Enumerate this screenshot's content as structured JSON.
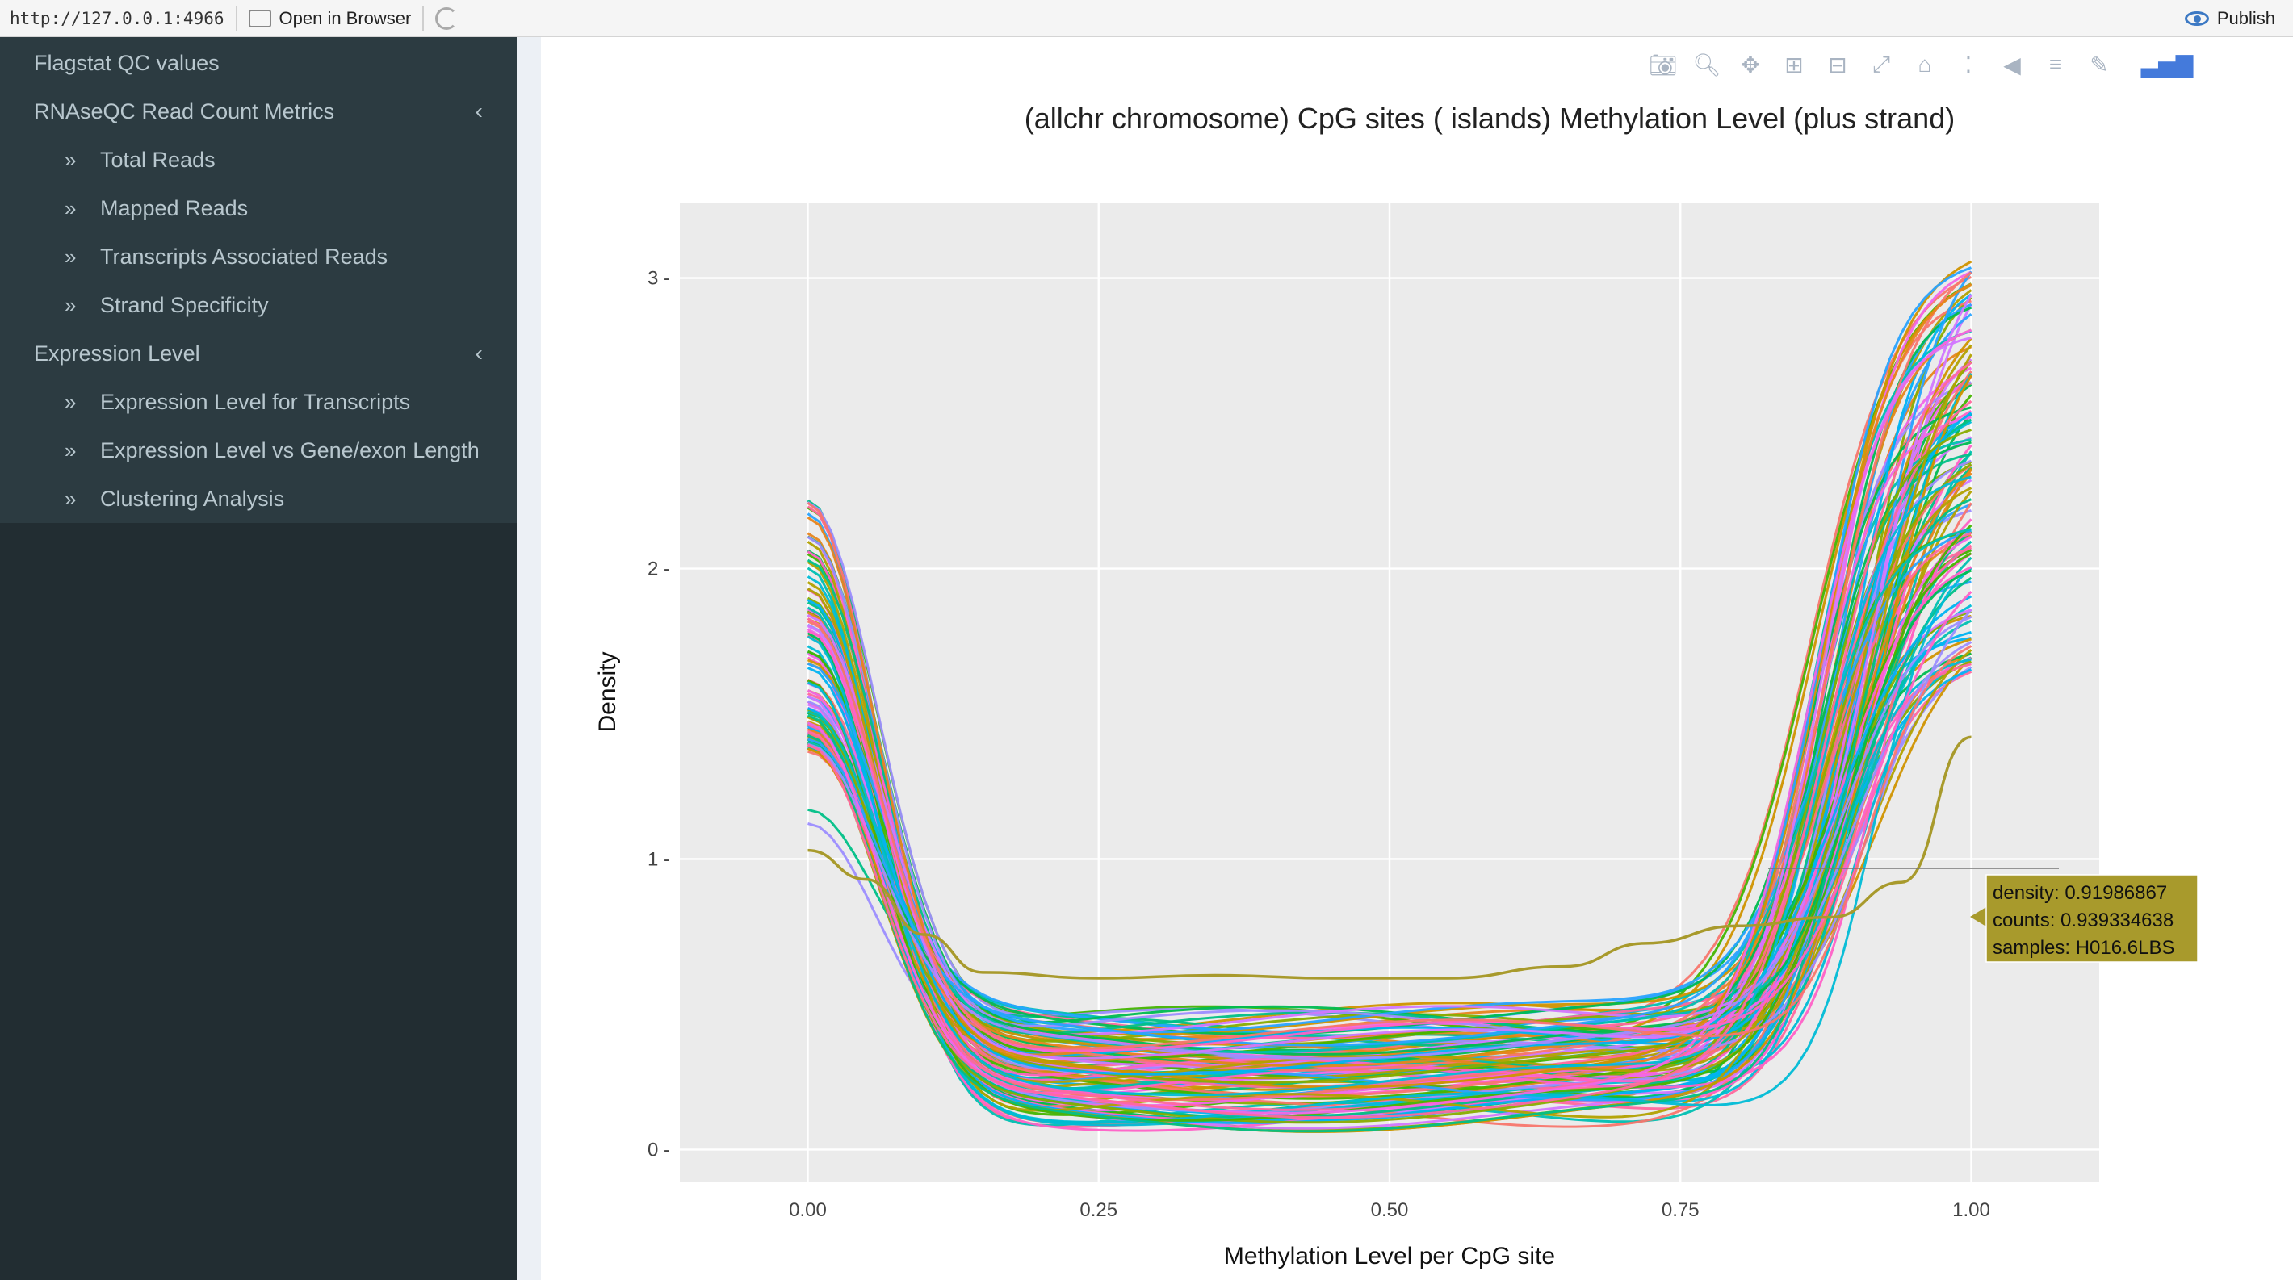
{
  "browser": {
    "url": "http://127.0.0.1:4966",
    "open_in_browser": "Open in Browser",
    "publish": "Publish"
  },
  "sidebar": {
    "items": [
      {
        "label": "Flagstat QC values",
        "level": "top",
        "caret": false
      },
      {
        "label": "RNAseQC Read Count Metrics",
        "level": "top",
        "caret": true
      },
      {
        "label": "Total Reads",
        "level": "sub"
      },
      {
        "label": "Mapped Reads",
        "level": "sub"
      },
      {
        "label": "Transcripts Associated Reads",
        "level": "sub"
      },
      {
        "label": "Strand Specificity",
        "level": "sub"
      },
      {
        "label": "Expression Level",
        "level": "top",
        "caret": true
      },
      {
        "label": "Expression Level for Transcripts",
        "level": "sub"
      },
      {
        "label": "Expression Level vs Gene/exon Length",
        "level": "sub"
      },
      {
        "label": "Clustering Analysis",
        "level": "sub"
      }
    ]
  },
  "modebar": {
    "icons": [
      "camera-icon",
      "zoom-icon",
      "pan-icon",
      "zoom-in-icon",
      "zoom-out-icon",
      "autoscale-icon",
      "reset-axes-icon",
      "spike-lines-icon",
      "hover-closest-icon",
      "hover-compare-icon",
      "edit-chart-icon",
      "plotly-logo-icon"
    ]
  },
  "chart_data": {
    "type": "line",
    "title": "(allchr chromosome) CpG sites ( islands) Methylation Level (plus strand)",
    "xlabel": "Methylation Level per CpG site",
    "ylabel": "Density",
    "xlim": [
      -0.11,
      1.11
    ],
    "ylim": [
      -0.11,
      3.26
    ],
    "x_ticks": [
      "0.00",
      "0.25",
      "0.50",
      "0.75",
      "1.00"
    ],
    "y_ticks": [
      "0",
      "1",
      "2",
      "3"
    ],
    "grid": true,
    "legend": "none",
    "series_count": 120,
    "series_colors": [
      "#F8766D",
      "#E7851E",
      "#D09400",
      "#B2A100",
      "#89AC00",
      "#45B500",
      "#00BC51",
      "#00C087",
      "#00C0B2",
      "#00BCD6",
      "#00B3F2",
      "#29A3FF",
      "#9C8DFF",
      "#D277FF",
      "#F166E8",
      "#FF61C7",
      "#FF689E"
    ],
    "start_density_range": [
      1.03,
      2.24
    ],
    "end_density_range": [
      1.42,
      3.08
    ],
    "trough_density_range": [
      0.05,
      0.52
    ],
    "highlighted_series": {
      "name": "H016.6LBS",
      "color": "#A89A2C",
      "points": [
        [
          0.0,
          1.03
        ],
        [
          0.05,
          0.93
        ],
        [
          0.1,
          0.74
        ],
        [
          0.15,
          0.61
        ],
        [
          0.25,
          0.59
        ],
        [
          0.35,
          0.6
        ],
        [
          0.45,
          0.59
        ],
        [
          0.55,
          0.59
        ],
        [
          0.65,
          0.63
        ],
        [
          0.72,
          0.71
        ],
        [
          0.8,
          0.77
        ],
        [
          0.88,
          0.8
        ],
        [
          0.94,
          0.92
        ],
        [
          1.0,
          1.42
        ]
      ]
    },
    "tooltip": {
      "density": "density: 0.91986867",
      "counts": "counts: 0.939334638",
      "samples": "samples: H016.6LBS"
    }
  }
}
